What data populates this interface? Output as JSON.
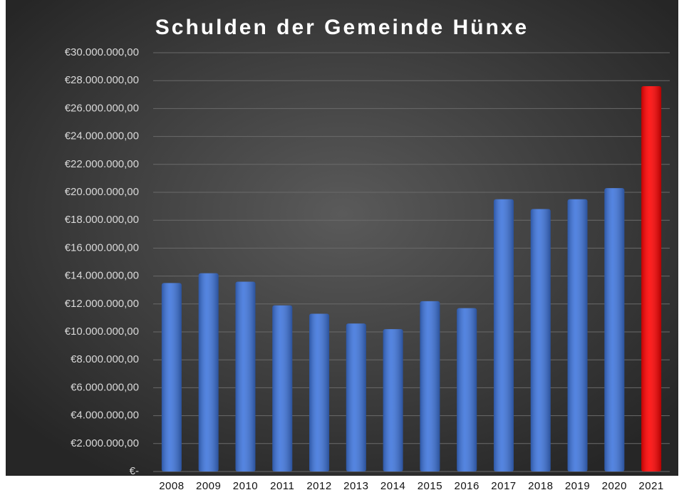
{
  "chart_data": {
    "type": "bar",
    "title": "Schulden der Gemeinde Hünxe",
    "categories": [
      "2008",
      "2009",
      "2010",
      "2011",
      "2012",
      "2013",
      "2014",
      "2015",
      "2016",
      "2017",
      "2018",
      "2019",
      "2020",
      "2021"
    ],
    "values": [
      13500000,
      14200000,
      13600000,
      11900000,
      11300000,
      10600000,
      10200000,
      12200000,
      11700000,
      19500000,
      18800000,
      19500000,
      20300000,
      27600000
    ],
    "colors": [
      "#3d74dc",
      "#3d74dc",
      "#3d74dc",
      "#3d74dc",
      "#3d74dc",
      "#3d74dc",
      "#3d74dc",
      "#3d74dc",
      "#3d74dc",
      "#3d74dc",
      "#3d74dc",
      "#3d74dc",
      "#3d74dc",
      "#ff0000"
    ],
    "ylim": [
      0,
      30000000
    ],
    "yticks": [
      {
        "value": 0,
        "label": "€-"
      },
      {
        "value": 2000000,
        "label": "€2.000.000,00"
      },
      {
        "value": 4000000,
        "label": "€4.000.000,00"
      },
      {
        "value": 6000000,
        "label": "€6.000.000,00"
      },
      {
        "value": 8000000,
        "label": "€8.000.000,00"
      },
      {
        "value": 10000000,
        "label": "€10.000.000,00"
      },
      {
        "value": 12000000,
        "label": "€12.000.000,00"
      },
      {
        "value": 14000000,
        "label": "€14.000.000,00"
      },
      {
        "value": 16000000,
        "label": "€16.000.000,00"
      },
      {
        "value": 18000000,
        "label": "€18.000.000,00"
      },
      {
        "value": 20000000,
        "label": "€20.000.000,00"
      },
      {
        "value": 22000000,
        "label": "€22.000.000,00"
      },
      {
        "value": 24000000,
        "label": "€24.000.000,00"
      },
      {
        "value": 26000000,
        "label": "€26.000.000,00"
      },
      {
        "value": 28000000,
        "label": "€28.000.000,00"
      },
      {
        "value": 30000000,
        "label": "€30.000.000,00"
      }
    ],
    "grid": true
  }
}
